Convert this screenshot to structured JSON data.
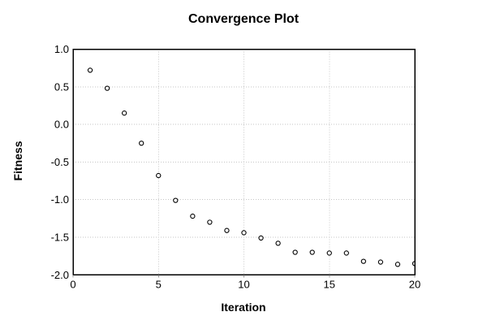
{
  "figure": {
    "background": "#ffffff"
  },
  "chart_data": {
    "type": "scatter",
    "title": "Convergence Plot",
    "xlabel": "Iteration",
    "ylabel": "Fitness",
    "x": [
      1,
      2,
      3,
      4,
      5,
      6,
      7,
      8,
      9,
      10,
      11,
      12,
      13,
      14,
      15,
      16,
      17,
      18,
      19,
      20
    ],
    "y": [
      0.72,
      0.48,
      0.15,
      -0.25,
      -0.68,
      -1.01,
      -1.22,
      -1.3,
      -1.41,
      -1.44,
      -1.51,
      -1.58,
      -1.7,
      -1.7,
      -1.71,
      -1.71,
      -1.82,
      -1.83,
      -1.86,
      -1.85
    ],
    "xlim": [
      0,
      20
    ],
    "ylim": [
      -2.0,
      1.0
    ],
    "xticks": {
      "values": [
        0,
        5,
        10,
        15,
        20
      ],
      "labels": [
        "0",
        "5",
        "10",
        "15",
        "20"
      ]
    },
    "yticks": {
      "values": [
        1.0,
        0.5,
        0.0,
        -0.5,
        -1.0,
        -1.5,
        -2.0
      ],
      "labels": [
        "1.0",
        "0.5",
        "0.0",
        "-0.5",
        "-1.0",
        "-1.5",
        "-2.0"
      ]
    },
    "grid": {
      "visible": true,
      "style": "dotted",
      "x_values": [
        5,
        10,
        15
      ],
      "y_values": [
        0.5,
        0.0,
        -0.5,
        -1.0,
        -1.5
      ]
    },
    "legend": "none",
    "marker": "open-circle",
    "colors": {
      "marker_stroke": "#000000",
      "marker_fill": "#ffffff",
      "grid": "#c6c6c6",
      "frame": "#000000",
      "text": "#000000",
      "background": "#ffffff"
    }
  }
}
